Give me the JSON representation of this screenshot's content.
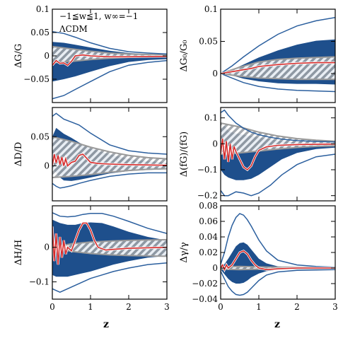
{
  "colors": {
    "band": "#1e4f8c",
    "edge": "#2b5f9e",
    "lcdm": "#9a9a9a",
    "median": "#d62828",
    "hatch": "#9aa0a6"
  },
  "legend": {
    "line1": "−1≦w≦1,  w∞=−1",
    "line2": "ΛCDM"
  },
  "xlabel": "z",
  "chart_data": [
    {
      "id": "dG",
      "type": "area",
      "ylabel": "ΔG/G",
      "xlim": [
        0,
        3
      ],
      "ylim": [
        -0.1,
        0.1
      ],
      "yticks": [
        -0.05,
        0,
        0.05,
        0.1
      ],
      "yticklabels": [
        "−0.05",
        "0",
        "0.05",
        "0.1"
      ],
      "xticks": [
        0,
        1,
        2,
        3
      ],
      "xticklabels": [],
      "band": {
        "x": [
          0,
          0.3,
          0.6,
          1.0,
          1.5,
          2.0,
          2.5,
          3.0
        ],
        "upper": [
          0.03,
          0.028,
          0.024,
          0.018,
          0.011,
          0.006,
          0.004,
          0.003
        ],
        "lower": [
          -0.055,
          -0.05,
          -0.044,
          -0.034,
          -0.022,
          -0.013,
          -0.009,
          -0.007
        ]
      },
      "outer": {
        "x": [
          0,
          0.3,
          0.6,
          1.0,
          1.5,
          2.0,
          2.5,
          3.0
        ],
        "upper": [
          0.052,
          0.048,
          0.04,
          0.028,
          0.016,
          0.009,
          0.006,
          0.004
        ],
        "lower": [
          -0.092,
          -0.085,
          -0.072,
          -0.055,
          -0.034,
          -0.02,
          -0.014,
          -0.01
        ]
      },
      "lcdm": {
        "x": [
          0,
          0.5,
          1.0,
          1.5,
          2.0,
          2.5,
          3.0
        ],
        "upper": [
          0.02,
          0.015,
          0.01,
          0.006,
          0.004,
          0.003,
          0.002
        ],
        "lower": [
          -0.015,
          -0.012,
          -0.008,
          -0.005,
          -0.003,
          -0.002,
          -0.002
        ]
      },
      "median": {
        "x": [
          0,
          0.1,
          0.2,
          0.3,
          0.4,
          0.5,
          0.6,
          0.8,
          1.0,
          1.5,
          2.0,
          3.0
        ],
        "y": [
          -0.02,
          -0.01,
          -0.016,
          -0.015,
          -0.02,
          -0.012,
          0.0,
          0.002,
          0.0,
          -0.002,
          -0.002,
          -0.001
        ]
      }
    },
    {
      "id": "dG0",
      "type": "area",
      "ylabel": "ΔG₀/G₀",
      "xlim": [
        0,
        3
      ],
      "ylim": [
        -0.045,
        0.1
      ],
      "yticks": [
        0,
        0.05,
        0.1
      ],
      "yticklabels": [
        "0",
        "0.05",
        "0.1"
      ],
      "xticks": [
        0,
        1,
        2,
        3
      ],
      "xticklabels": [],
      "band": {
        "x": [
          0,
          0.3,
          0.6,
          1.0,
          1.5,
          2.0,
          2.5,
          3.0
        ],
        "upper": [
          0,
          0.006,
          0.014,
          0.025,
          0.036,
          0.045,
          0.051,
          0.053
        ],
        "lower": [
          0,
          -0.003,
          -0.008,
          -0.012,
          -0.015,
          -0.016,
          -0.016,
          -0.017
        ]
      },
      "outer": {
        "x": [
          0,
          0.3,
          0.6,
          1.0,
          1.5,
          2.0,
          2.5,
          3.0
        ],
        "upper": [
          0,
          0.012,
          0.026,
          0.043,
          0.061,
          0.074,
          0.082,
          0.087
        ],
        "lower": [
          0,
          -0.007,
          -0.014,
          -0.02,
          -0.024,
          -0.026,
          -0.027,
          -0.028
        ]
      },
      "lcdm": {
        "x": [
          0,
          0.5,
          1.0,
          1.5,
          2.0,
          2.5,
          3.0
        ],
        "upper": [
          0,
          0.01,
          0.018,
          0.022,
          0.024,
          0.025,
          0.026
        ],
        "lower": [
          0,
          -0.004,
          -0.007,
          -0.008,
          -0.009,
          -0.009,
          -0.009
        ]
      },
      "median": {
        "x": [
          0,
          0.2,
          0.4,
          0.6,
          0.8,
          1.0,
          1.5,
          2.0,
          2.5,
          3.0
        ],
        "y": [
          0,
          0.002,
          0.004,
          0.006,
          0.008,
          0.011,
          0.014,
          0.016,
          0.017,
          0.017
        ]
      }
    },
    {
      "id": "dD",
      "type": "area",
      "ylabel": "ΔD/D",
      "xlim": [
        0,
        3
      ],
      "ylim": [
        -0.06,
        0.1
      ],
      "yticks": [
        0,
        0.05
      ],
      "yticklabels": [
        "0",
        "0.05"
      ],
      "xticks": [
        0,
        1,
        2,
        3
      ],
      "xticklabels": [],
      "band": {
        "x": [
          0,
          0.1,
          0.2,
          0.3,
          0.5,
          0.7,
          1.0,
          1.5,
          2.0,
          2.5,
          3.0
        ],
        "upper": [
          0.05,
          0.065,
          0.06,
          0.055,
          0.048,
          0.04,
          0.03,
          0.02,
          0.012,
          0.008,
          0.006
        ],
        "lower": [
          -0.005,
          -0.012,
          -0.02,
          -0.025,
          -0.026,
          -0.024,
          -0.02,
          -0.013,
          -0.009,
          -0.007,
          -0.006
        ]
      },
      "outer": {
        "x": [
          0,
          0.1,
          0.2,
          0.3,
          0.5,
          0.7,
          1.0,
          1.5,
          2.0,
          2.5,
          3.0
        ],
        "upper": [
          0.085,
          0.09,
          0.085,
          0.08,
          0.075,
          0.07,
          0.056,
          0.036,
          0.026,
          0.022,
          0.02
        ],
        "lower": [
          -0.03,
          -0.035,
          -0.038,
          -0.037,
          -0.034,
          -0.03,
          -0.025,
          -0.018,
          -0.014,
          -0.012,
          -0.012
        ]
      },
      "lcdm": {
        "x": [
          0,
          0.5,
          1.0,
          1.5,
          2.0,
          2.5,
          3.0
        ],
        "upper": [
          0.05,
          0.042,
          0.032,
          0.024,
          0.018,
          0.014,
          0.012
        ],
        "lower": [
          -0.02,
          -0.018,
          -0.015,
          -0.011,
          -0.008,
          -0.006,
          -0.005
        ]
      },
      "median": {
        "x": [
          0,
          0.05,
          0.1,
          0.15,
          0.2,
          0.25,
          0.3,
          0.35,
          0.4,
          0.5,
          0.6,
          0.7,
          0.8,
          1.0,
          1.2,
          1.5,
          2.0,
          3.0
        ],
        "y": [
          0.0,
          0.02,
          0.005,
          0.018,
          0.002,
          0.015,
          0.0,
          0.012,
          0.0,
          0.006,
          0.008,
          0.018,
          0.02,
          0.006,
          0.004,
          0.003,
          0.002,
          0.001
        ]
      }
    },
    {
      "id": "dfG",
      "type": "area",
      "ylabel": "Δ(fG)/(fG)",
      "xlim": [
        0,
        3
      ],
      "ylim": [
        -0.22,
        0.14
      ],
      "yticks": [
        -0.2,
        -0.1,
        0,
        0.1
      ],
      "yticklabels": [
        "−0.2",
        "−0.1",
        "0",
        "0.1"
      ],
      "xticks": [
        0,
        1,
        2,
        3
      ],
      "xticklabels": [],
      "band": {
        "x": [
          0,
          0.1,
          0.2,
          0.4,
          0.6,
          0.8,
          1.0,
          1.3,
          1.6,
          2.0,
          2.5,
          3.0
        ],
        "upper": [
          0.06,
          0.07,
          0.05,
          0.04,
          0.035,
          0.03,
          0.025,
          0.018,
          0.012,
          0.008,
          0.006,
          0.005
        ],
        "lower": [
          -0.1,
          -0.12,
          -0.13,
          -0.14,
          -0.14,
          -0.135,
          -0.12,
          -0.09,
          -0.06,
          -0.035,
          -0.02,
          -0.015
        ]
      },
      "outer": {
        "x": [
          0,
          0.1,
          0.2,
          0.4,
          0.6,
          0.8,
          1.0,
          1.3,
          1.6,
          2.0,
          2.5,
          3.0
        ],
        "upper": [
          0.12,
          0.13,
          0.11,
          0.08,
          0.06,
          0.045,
          0.035,
          0.025,
          0.018,
          0.012,
          0.009,
          0.007
        ],
        "lower": [
          -0.18,
          -0.2,
          -0.2,
          -0.185,
          -0.19,
          -0.2,
          -0.19,
          -0.16,
          -0.12,
          -0.08,
          -0.05,
          -0.04
        ]
      },
      "lcdm": {
        "x": [
          0,
          0.5,
          1.0,
          1.5,
          2.0,
          2.5,
          3.0
        ],
        "upper": [
          0.08,
          0.065,
          0.045,
          0.03,
          0.02,
          0.014,
          0.01
        ],
        "lower": [
          -0.04,
          -0.035,
          -0.028,
          -0.02,
          -0.014,
          -0.01,
          -0.008
        ]
      },
      "median": {
        "x": [
          0,
          0.05,
          0.1,
          0.15,
          0.2,
          0.25,
          0.3,
          0.35,
          0.4,
          0.5,
          0.6,
          0.7,
          0.8,
          0.9,
          1.0,
          1.2,
          1.5,
          2.0,
          3.0
        ],
        "y": [
          -0.04,
          0.02,
          -0.06,
          0.01,
          -0.07,
          0.0,
          -0.06,
          -0.01,
          -0.03,
          -0.06,
          -0.09,
          -0.1,
          -0.085,
          -0.05,
          -0.025,
          -0.012,
          -0.006,
          -0.003,
          -0.001
        ]
      }
    },
    {
      "id": "dH",
      "type": "area",
      "ylabel": "ΔH/H",
      "xlim": [
        0,
        3
      ],
      "ylim": [
        -0.15,
        0.12
      ],
      "yticks": [
        -0.1,
        0
      ],
      "yticklabels": [
        "−0.1",
        "0"
      ],
      "xticks": [
        0,
        1,
        2,
        3
      ],
      "xticklabels": [
        "0",
        "1",
        "2",
        "3"
      ],
      "band": {
        "x": [
          0,
          0.1,
          0.2,
          0.4,
          0.6,
          0.8,
          1.0,
          1.3,
          1.6,
          2.0,
          2.5,
          3.0
        ],
        "upper": [
          0.08,
          0.075,
          0.07,
          0.065,
          0.065,
          0.07,
          0.072,
          0.07,
          0.06,
          0.045,
          0.03,
          0.02
        ],
        "lower": [
          -0.08,
          -0.085,
          -0.085,
          -0.085,
          -0.08,
          -0.075,
          -0.07,
          -0.06,
          -0.05,
          -0.04,
          -0.03,
          -0.025
        ]
      },
      "outer": {
        "x": [
          0,
          0.1,
          0.2,
          0.4,
          0.6,
          0.8,
          1.0,
          1.3,
          1.6,
          2.0,
          2.5,
          3.0
        ],
        "upper": [
          0.1,
          0.095,
          0.09,
          0.088,
          0.09,
          0.095,
          0.098,
          0.098,
          0.09,
          0.075,
          0.055,
          0.04
        ],
        "lower": [
          -0.12,
          -0.125,
          -0.13,
          -0.12,
          -0.11,
          -0.1,
          -0.09,
          -0.08,
          -0.07,
          -0.06,
          -0.05,
          -0.045
        ]
      },
      "lcdm": {
        "x": [
          0,
          0.5,
          1.0,
          1.5,
          2.0,
          2.5,
          3.0
        ],
        "upper": [
          0.0,
          0.01,
          0.015,
          0.018,
          0.02,
          0.021,
          0.022
        ],
        "lower": [
          0.0,
          -0.012,
          -0.018,
          -0.022,
          -0.024,
          -0.025,
          -0.026
        ]
      },
      "median": {
        "x": [
          0,
          0.05,
          0.1,
          0.15,
          0.2,
          0.25,
          0.3,
          0.35,
          0.4,
          0.5,
          0.6,
          0.7,
          0.8,
          0.9,
          1.0,
          1.1,
          1.2,
          1.4,
          1.6,
          2.0,
          3.0
        ],
        "y": [
          0.06,
          -0.04,
          0.04,
          -0.05,
          0.03,
          -0.03,
          0.02,
          -0.02,
          0.0,
          -0.01,
          0.02,
          0.05,
          0.07,
          0.07,
          0.05,
          0.02,
          0.0,
          -0.008,
          -0.006,
          -0.003,
          0.0
        ]
      }
    },
    {
      "id": "dGamma",
      "type": "area",
      "ylabel": "Δγ/γ",
      "xlim": [
        0,
        3
      ],
      "ylim": [
        -0.04,
        0.08
      ],
      "yticks": [
        -0.04,
        -0.02,
        0,
        0.02,
        0.04,
        0.06,
        0.08
      ],
      "yticklabels": [
        "−0.04",
        "−0.02",
        "0",
        "0.02",
        "0.04",
        "0.06",
        "0.08"
      ],
      "xticks": [
        0,
        1,
        2,
        3
      ],
      "xticklabels": [
        "0",
        "1",
        "2",
        "3"
      ],
      "band": {
        "x": [
          0,
          0.1,
          0.2,
          0.3,
          0.4,
          0.5,
          0.6,
          0.7,
          0.8,
          1.0,
          1.2,
          1.5,
          2.0,
          2.5,
          3.0
        ],
        "upper": [
          0.002,
          0.005,
          0.012,
          0.02,
          0.028,
          0.032,
          0.033,
          0.03,
          0.024,
          0.012,
          0.006,
          0.002,
          0.001,
          0.0005,
          0.0003
        ],
        "lower": [
          -0.002,
          -0.008,
          -0.014,
          -0.018,
          -0.02,
          -0.02,
          -0.019,
          -0.016,
          -0.012,
          -0.007,
          -0.004,
          -0.002,
          -0.0015,
          -0.001,
          -0.001
        ]
      },
      "outer": {
        "x": [
          0,
          0.1,
          0.2,
          0.3,
          0.4,
          0.5,
          0.6,
          0.7,
          0.8,
          1.0,
          1.2,
          1.5,
          2.0,
          2.5,
          3.0
        ],
        "upper": [
          0.005,
          0.02,
          0.04,
          0.055,
          0.065,
          0.07,
          0.068,
          0.062,
          0.054,
          0.036,
          0.022,
          0.01,
          0.004,
          0.002,
          0.001
        ],
        "lower": [
          -0.004,
          -0.014,
          -0.024,
          -0.03,
          -0.034,
          -0.035,
          -0.034,
          -0.031,
          -0.026,
          -0.016,
          -0.009,
          -0.005,
          -0.003,
          -0.0025,
          -0.002
        ]
      },
      "lcdm": {
        "x": [
          0,
          0.5,
          1.0,
          1.5,
          2.0,
          2.5,
          3.0
        ],
        "upper": [
          0.0015,
          0.002,
          0.0015,
          0.001,
          0.001,
          0.001,
          0.001
        ],
        "lower": [
          -0.0015,
          -0.002,
          -0.0015,
          -0.001,
          -0.001,
          -0.001,
          -0.001
        ]
      },
      "median": {
        "x": [
          0,
          0.05,
          0.1,
          0.15,
          0.2,
          0.3,
          0.4,
          0.5,
          0.6,
          0.7,
          0.8,
          0.9,
          1.0,
          1.2,
          1.5,
          2.0,
          3.0
        ],
        "y": [
          0.0,
          0.004,
          -0.002,
          0.004,
          0.0,
          0.004,
          0.012,
          0.02,
          0.022,
          0.018,
          0.01,
          0.004,
          0.0,
          -0.002,
          -0.001,
          0.0,
          0.0
        ]
      }
    }
  ]
}
